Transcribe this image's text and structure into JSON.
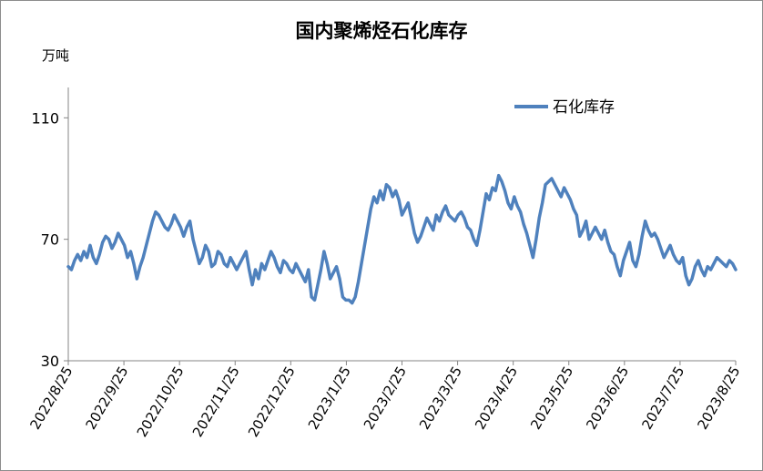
{
  "chart_data": {
    "type": "line",
    "title": "国内聚烯烃石化库存",
    "ylabel": "万吨",
    "xlabel": "",
    "ylim": [
      30,
      120
    ],
    "yticks": [
      30,
      70,
      110
    ],
    "grid": false,
    "legend_position": "top-right",
    "x_tick_labels": [
      "2022/8/25",
      "2022/9/25",
      "2022/10/25",
      "2022/11/25",
      "2022/12/25",
      "2023/1/25",
      "2023/2/25",
      "2023/3/25",
      "2023/4/25",
      "2023/5/25",
      "2023/6/25",
      "2023/7/25",
      "2023/8/25"
    ],
    "series": [
      {
        "name": "石化库存",
        "color": "#4f81bd",
        "values": [
          61,
          60,
          63,
          65,
          63,
          66,
          64,
          68,
          64,
          62,
          65,
          69,
          71,
          70,
          67,
          69,
          72,
          70,
          68,
          64,
          66,
          62,
          57,
          61,
          64,
          68,
          72,
          76,
          79,
          78,
          76,
          74,
          73,
          75,
          78,
          76,
          74,
          71,
          74,
          76,
          70,
          66,
          62,
          64,
          68,
          66,
          61,
          62,
          66,
          65,
          62,
          61,
          64,
          62,
          60,
          62,
          64,
          66,
          60,
          55,
          60,
          57,
          62,
          60,
          63,
          66,
          64,
          61,
          59,
          63,
          62,
          60,
          59,
          62,
          60,
          58,
          56,
          60,
          51,
          50,
          55,
          60,
          66,
          62,
          57,
          59,
          61,
          57,
          51,
          50,
          50,
          49,
          51,
          56,
          62,
          68,
          74,
          80,
          84,
          82,
          86,
          83,
          88,
          87,
          84,
          86,
          83,
          78,
          80,
          82,
          77,
          72,
          69,
          71,
          74,
          77,
          75,
          73,
          78,
          76,
          79,
          81,
          78,
          77,
          76,
          78,
          79,
          77,
          74,
          73,
          70,
          68,
          73,
          79,
          85,
          83,
          87,
          86,
          91,
          89,
          86,
          82,
          80,
          84,
          81,
          79,
          75,
          72,
          68,
          64,
          70,
          77,
          82,
          88,
          89,
          90,
          88,
          86,
          84,
          87,
          85,
          83,
          80,
          78,
          71,
          73,
          76,
          70,
          72,
          74,
          72,
          70,
          73,
          69,
          66,
          65,
          61,
          58,
          63,
          66,
          69,
          63,
          61,
          65,
          71,
          76,
          73,
          71,
          72,
          70,
          67,
          64,
          66,
          68,
          65,
          63,
          62,
          64,
          58,
          55,
          57,
          61,
          63,
          60,
          58,
          61,
          60,
          62,
          64,
          63,
          62,
          61,
          63,
          62,
          60
        ],
        "values_note_omitted": ""
      }
    ]
  }
}
